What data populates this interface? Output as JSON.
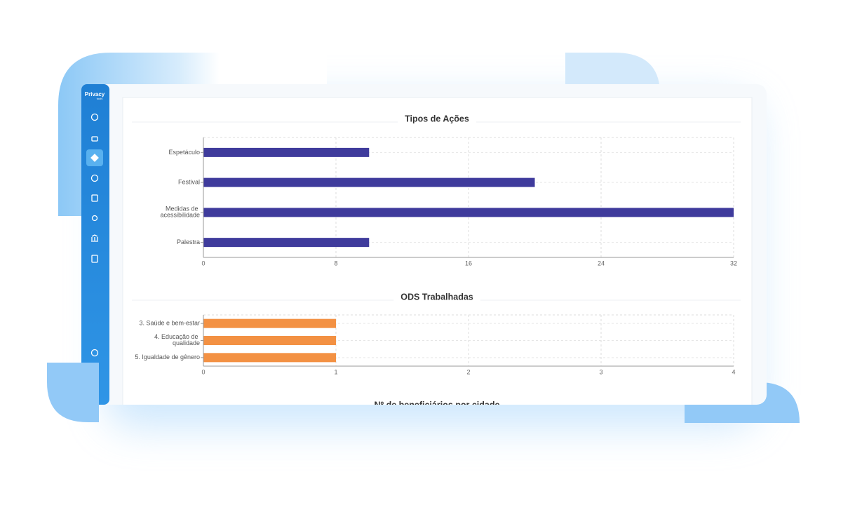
{
  "logo": {
    "name": "Privacy",
    "sub": "tools"
  },
  "chart_data": [
    {
      "type": "hbar",
      "title": "Tipos de Ações",
      "categories": [
        "Espetáculo",
        "Festival",
        "Medidas de acessibilidade",
        "Palestra"
      ],
      "values": [
        10,
        20,
        32,
        10
      ],
      "color": "#3f3b9c",
      "xlim": [
        0,
        32
      ],
      "xticks": [
        0,
        8,
        16,
        24,
        32
      ],
      "grid": true
    },
    {
      "type": "hbar",
      "title": "ODS Trabalhadas",
      "categories": [
        "3. Saúde e bem-estar",
        "4. Educação de qualidade",
        "5. Igualdade de gênero"
      ],
      "values": [
        1,
        1,
        1
      ],
      "color": "#f39143",
      "xlim": [
        0,
        4
      ],
      "xticks": [
        0,
        1,
        2,
        3,
        4
      ],
      "grid": true
    },
    {
      "type": "hbar",
      "title": "Nº de beneficiários por cidade"
    }
  ]
}
